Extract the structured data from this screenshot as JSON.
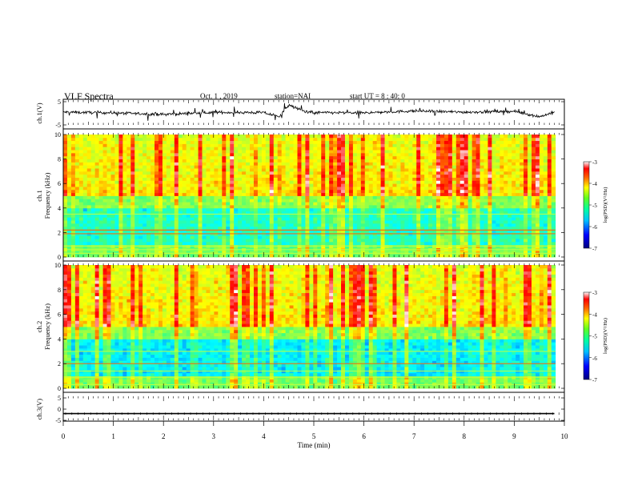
{
  "header": {
    "title": "VLF Spectra",
    "date": "Oct. 1 , 2019",
    "station": "station=NAI",
    "start": "start UT = 8 : 40: 0"
  },
  "colors": {
    "spectrogram_cmap": [
      "#00007f",
      "#0000ff",
      "#00a0ff",
      "#00ffff",
      "#40ff80",
      "#a0ff40",
      "#ffff00",
      "#ff8000",
      "#ff0000",
      "#ffffff"
    ],
    "trace": "#000000"
  },
  "chart_data": [
    {
      "type": "line",
      "panel": "ch1_voltage",
      "ylabel": "ch.1(V)",
      "ylim": [
        -5,
        5
      ],
      "yticks": [
        "5",
        "-5"
      ],
      "x": [
        0,
        1,
        2,
        3,
        4,
        4.3,
        4.5,
        4.8,
        5,
        6,
        7,
        8,
        9,
        9.3,
        9.5,
        9.8
      ],
      "values": [
        0.5,
        0.2,
        -0.5,
        0.4,
        0.3,
        -1.5,
        3.5,
        1.0,
        0.3,
        0.2,
        1.0,
        0.5,
        0.8,
        -0.5,
        -1.5,
        0.5
      ]
    },
    {
      "type": "heatmap",
      "panel": "ch1_spectrogram",
      "ylabel": "ch.1",
      "ylabel2": "Frequency (kHz)",
      "ylim": [
        0,
        10
      ],
      "yticks": [
        "0",
        "2",
        "4",
        "6",
        "8",
        "10"
      ],
      "colorbar": {
        "label": "log(PSD)(V²/Hz)",
        "range": [
          -7,
          -3
        ],
        "ticks": [
          "-3",
          "-4",
          "-5",
          "-6",
          "-7"
        ]
      }
    },
    {
      "type": "heatmap",
      "panel": "ch2_spectrogram",
      "ylabel": "ch.2",
      "ylabel2": "Frequency (kHz)",
      "ylim": [
        0,
        10
      ],
      "yticks": [
        "0",
        "2",
        "4",
        "6",
        "8",
        "10"
      ],
      "colorbar": {
        "label": "log(PSD)(V²/Hz)",
        "range": [
          -7,
          -3
        ],
        "ticks": [
          "-3",
          "-4",
          "-5",
          "-6",
          "-7"
        ]
      }
    },
    {
      "type": "line",
      "panel": "ch3_voltage",
      "ylabel": "ch.3(V)",
      "ylim": [
        -5,
        5
      ],
      "yticks": [
        "5",
        "0",
        "-5"
      ],
      "x": [
        0,
        9.8
      ],
      "values": [
        -2,
        -2
      ]
    }
  ],
  "xaxis": {
    "label": "Time (min)",
    "range": [
      0,
      10
    ],
    "ticks": [
      "0",
      "1",
      "2",
      "3",
      "4",
      "5",
      "6",
      "7",
      "8",
      "9",
      "10"
    ]
  }
}
